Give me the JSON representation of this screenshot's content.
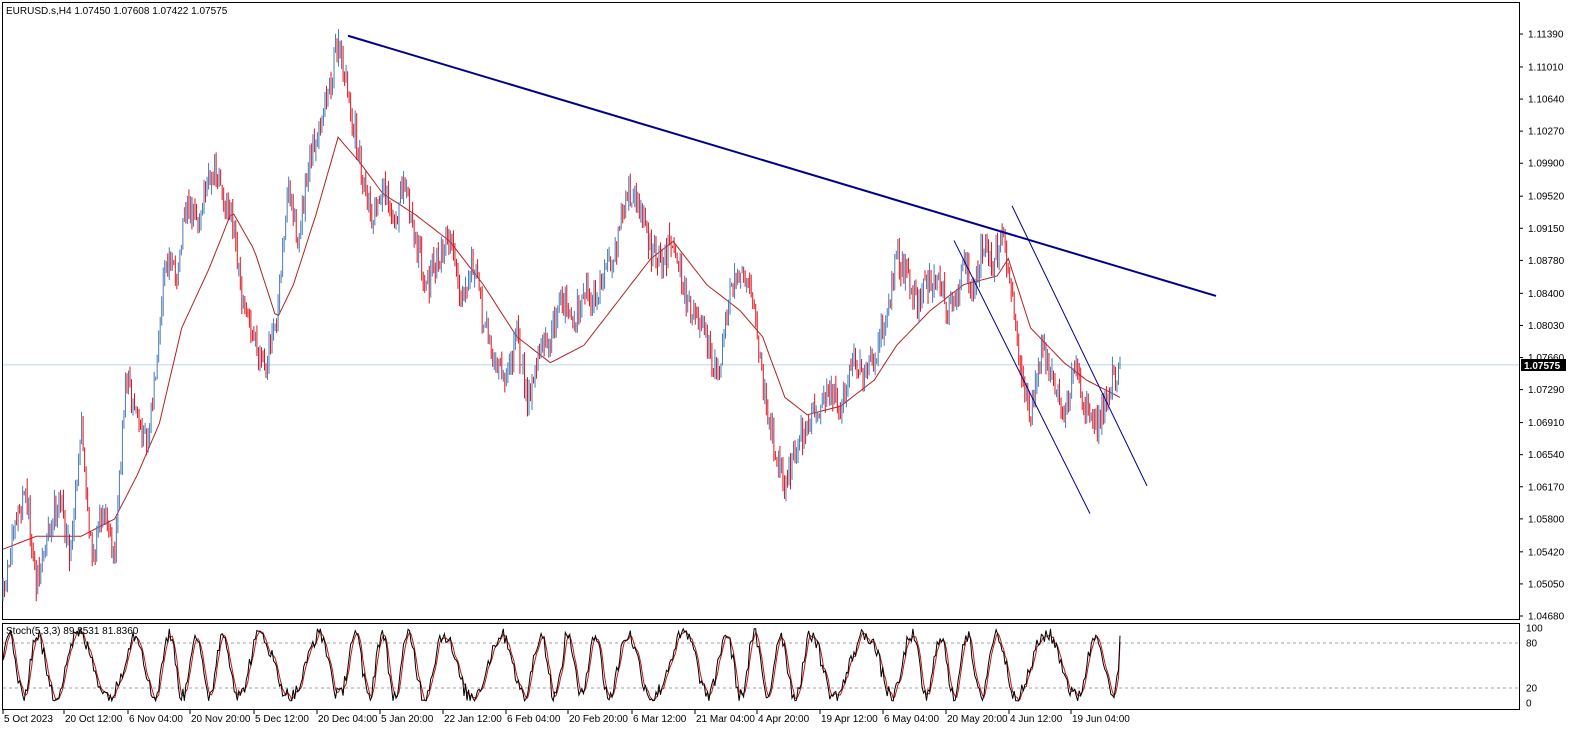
{
  "chart_data": [
    {
      "type": "candlestick",
      "symbol": "EURUSD.s",
      "timeframe": "H4",
      "header_text": "EURUSD.s,H4  1.07450 1.07608 1.07422 1.07575",
      "ohlc_last": {
        "open": 1.0745,
        "high": 1.07608,
        "low": 1.07422,
        "close": 1.07575
      },
      "current_price_label": "1.07575",
      "ylim": [
        1.0468,
        1.1158
      ],
      "price_ticks": [
        "1.11390",
        "1.11010",
        "1.10640",
        "1.10270",
        "1.09900",
        "1.09520",
        "1.09150",
        "1.08780",
        "1.08400",
        "1.08030",
        "1.07660",
        "1.07290",
        "1.06910",
        "1.06540",
        "1.06170",
        "1.05800",
        "1.05420",
        "1.05050",
        "1.04680"
      ],
      "time_ticks": [
        "5 Oct 2023",
        "20 Oct 12:00",
        "6 Nov 04:00",
        "20 Nov 20:00",
        "5 Dec 12:00",
        "20 Dec 04:00",
        "5 Jan 20:00",
        "22 Jan 12:00",
        "6 Feb 04:00",
        "20 Feb 20:00",
        "6 Mar 12:00",
        "21 Mar 04:00",
        "4 Apr 20:00",
        "19 Apr 12:00",
        "6 May 04:00",
        "20 May 20:00",
        "4 Jun 12:00",
        "19 Jun 04:00"
      ],
      "bull_color": "#4a7ab8",
      "bear_color": "#e0141e",
      "ma_color": "#b22222",
      "trendline_color": "#00008b",
      "channel_color": "#00008b",
      "price_line_color": "#b4d7e6",
      "path_points": [
        [
          1.049,
          0
        ],
        [
          1.0575,
          0.012
        ],
        [
          1.062,
          0.02
        ],
        [
          1.05,
          0.03
        ],
        [
          1.056,
          0.04
        ],
        [
          1.061,
          0.05
        ],
        [
          1.054,
          0.06
        ],
        [
          1.069,
          0.07
        ],
        [
          1.053,
          0.08
        ],
        [
          1.06,
          0.09
        ],
        [
          1.054,
          0.1
        ],
        [
          1.074,
          0.11
        ],
        [
          1.07,
          0.12
        ],
        [
          1.066,
          0.13
        ],
        [
          1.088,
          0.145
        ],
        [
          1.086,
          0.155
        ],
        [
          1.094,
          0.165
        ],
        [
          1.092,
          0.175
        ],
        [
          1.0985,
          0.185
        ],
        [
          1.096,
          0.195
        ],
        [
          1.092,
          0.205
        ],
        [
          1.082,
          0.215
        ],
        [
          1.079,
          0.225
        ],
        [
          1.076,
          0.235
        ],
        [
          1.08,
          0.245
        ],
        [
          1.096,
          0.255
        ],
        [
          1.09,
          0.265
        ],
        [
          1.099,
          0.275
        ],
        [
          1.105,
          0.285
        ],
        [
          1.109,
          0.295
        ],
        [
          1.1136,
          0.3
        ],
        [
          1.106,
          0.31
        ],
        [
          1.099,
          0.32
        ],
        [
          1.093,
          0.33
        ],
        [
          1.096,
          0.34
        ],
        [
          1.092,
          0.35
        ],
        [
          1.0965,
          0.36
        ],
        [
          1.09,
          0.37
        ],
        [
          1.085,
          0.38
        ],
        [
          1.088,
          0.39
        ],
        [
          1.091,
          0.4
        ],
        [
          1.084,
          0.41
        ],
        [
          1.088,
          0.42
        ],
        [
          1.081,
          0.43
        ],
        [
          1.076,
          0.44
        ],
        [
          1.074,
          0.45
        ],
        [
          1.079,
          0.46
        ],
        [
          1.072,
          0.47
        ],
        [
          1.077,
          0.48
        ],
        [
          1.079,
          0.49
        ],
        [
          1.084,
          0.5
        ],
        [
          1.08,
          0.51
        ],
        [
          1.085,
          0.52
        ],
        [
          1.083,
          0.53
        ],
        [
          1.087,
          0.54
        ],
        [
          1.09,
          0.55
        ],
        [
          1.096,
          0.56
        ],
        [
          1.094,
          0.57
        ],
        [
          1.089,
          0.58
        ],
        [
          1.087,
          0.59
        ],
        [
          1.091,
          0.6
        ],
        [
          1.084,
          0.61
        ],
        [
          1.081,
          0.62
        ],
        [
          1.078,
          0.63
        ],
        [
          1.074,
          0.64
        ],
        [
          1.083,
          0.65
        ],
        [
          1.087,
          0.66
        ],
        [
          1.085,
          0.67
        ],
        [
          1.074,
          0.68
        ],
        [
          1.067,
          0.69
        ],
        [
          1.062,
          0.7
        ],
        [
          1.066,
          0.71
        ],
        [
          1.069,
          0.72
        ],
        [
          1.071,
          0.73
        ],
        [
          1.073,
          0.74
        ],
        [
          1.07,
          0.75
        ],
        [
          1.077,
          0.76
        ],
        [
          1.074,
          0.77
        ],
        [
          1.076,
          0.78
        ],
        [
          1.081,
          0.79
        ],
        [
          1.088,
          0.8
        ],
        [
          1.086,
          0.81
        ],
        [
          1.083,
          0.82
        ],
        [
          1.086,
          0.83
        ],
        [
          1.085,
          0.84
        ],
        [
          1.081,
          0.85
        ],
        [
          1.088,
          0.86
        ],
        [
          1.084,
          0.87
        ],
        [
          1.089,
          0.875
        ],
        [
          1.091,
          0.88
        ],
        [
          1.087,
          0.885
        ],
        [
          1.089,
          0.89
        ],
        [
          1.09,
          0.895
        ],
        [
          1.082,
          0.905
        ],
        [
          1.076,
          0.91
        ],
        [
          1.07,
          0.92
        ],
        [
          1.078,
          0.93
        ],
        [
          1.074,
          0.94
        ],
        [
          1.07,
          0.95
        ],
        [
          1.075,
          0.96
        ],
        [
          1.071,
          0.97
        ],
        [
          1.069,
          0.98
        ],
        [
          1.073,
          0.99
        ],
        [
          1.07575,
          1.0
        ]
      ],
      "ma_points": [
        [
          1.0545,
          0
        ],
        [
          1.056,
          0.03
        ],
        [
          1.056,
          0.07
        ],
        [
          1.058,
          0.1
        ],
        [
          1.063,
          0.12
        ],
        [
          1.069,
          0.14
        ],
        [
          1.08,
          0.16
        ],
        [
          1.087,
          0.185
        ],
        [
          1.0935,
          0.205
        ],
        [
          1.089,
          0.225
        ],
        [
          1.081,
          0.245
        ],
        [
          1.085,
          0.26
        ],
        [
          1.093,
          0.28
        ],
        [
          1.102,
          0.3
        ],
        [
          1.099,
          0.32
        ],
        [
          1.0955,
          0.34
        ],
        [
          1.093,
          0.37
        ],
        [
          1.09,
          0.4
        ],
        [
          1.085,
          0.43
        ],
        [
          1.079,
          0.46
        ],
        [
          1.076,
          0.49
        ],
        [
          1.078,
          0.52
        ],
        [
          1.083,
          0.55
        ],
        [
          1.088,
          0.58
        ],
        [
          1.09,
          0.6
        ],
        [
          1.085,
          0.63
        ],
        [
          1.082,
          0.66
        ],
        [
          1.079,
          0.68
        ],
        [
          1.072,
          0.7
        ],
        [
          1.07,
          0.72
        ],
        [
          1.071,
          0.75
        ],
        [
          1.074,
          0.78
        ],
        [
          1.078,
          0.8
        ],
        [
          1.082,
          0.83
        ],
        [
          1.085,
          0.86
        ],
        [
          1.086,
          0.89
        ],
        [
          1.088,
          0.9
        ],
        [
          1.08,
          0.92
        ],
        [
          1.076,
          0.95
        ],
        [
          1.074,
          0.97
        ],
        [
          1.072,
          1.0
        ]
      ],
      "trendline": {
        "from": [
          "20 Dec 04:00",
          1.1137
        ],
        "to": [
          "after 19 Jun 04:00",
          1.0837
        ]
      },
      "channel": [
        {
          "from": [
            "20 May 20:00",
            1.0901
          ],
          "to": [
            "19 Jun 04:00",
            1.0586
          ]
        },
        {
          "from": [
            "4 Jun 12:00",
            1.0941
          ],
          "to": [
            "after 19 Jun 04:00",
            1.0618
          ]
        }
      ]
    },
    {
      "type": "line",
      "indicator": "Stochastic",
      "label": "Stoch(5,3,3) 89.8531 81.8360",
      "main_value": 89.8531,
      "signal_value": 81.836,
      "ylim": [
        0,
        100
      ],
      "levels": [
        20,
        80
      ],
      "y_ticks": [
        "100",
        "80",
        "20",
        "0"
      ],
      "main_color": "#000000",
      "signal_color": "#c01818",
      "level_color": "#a0a0a0"
    }
  ]
}
